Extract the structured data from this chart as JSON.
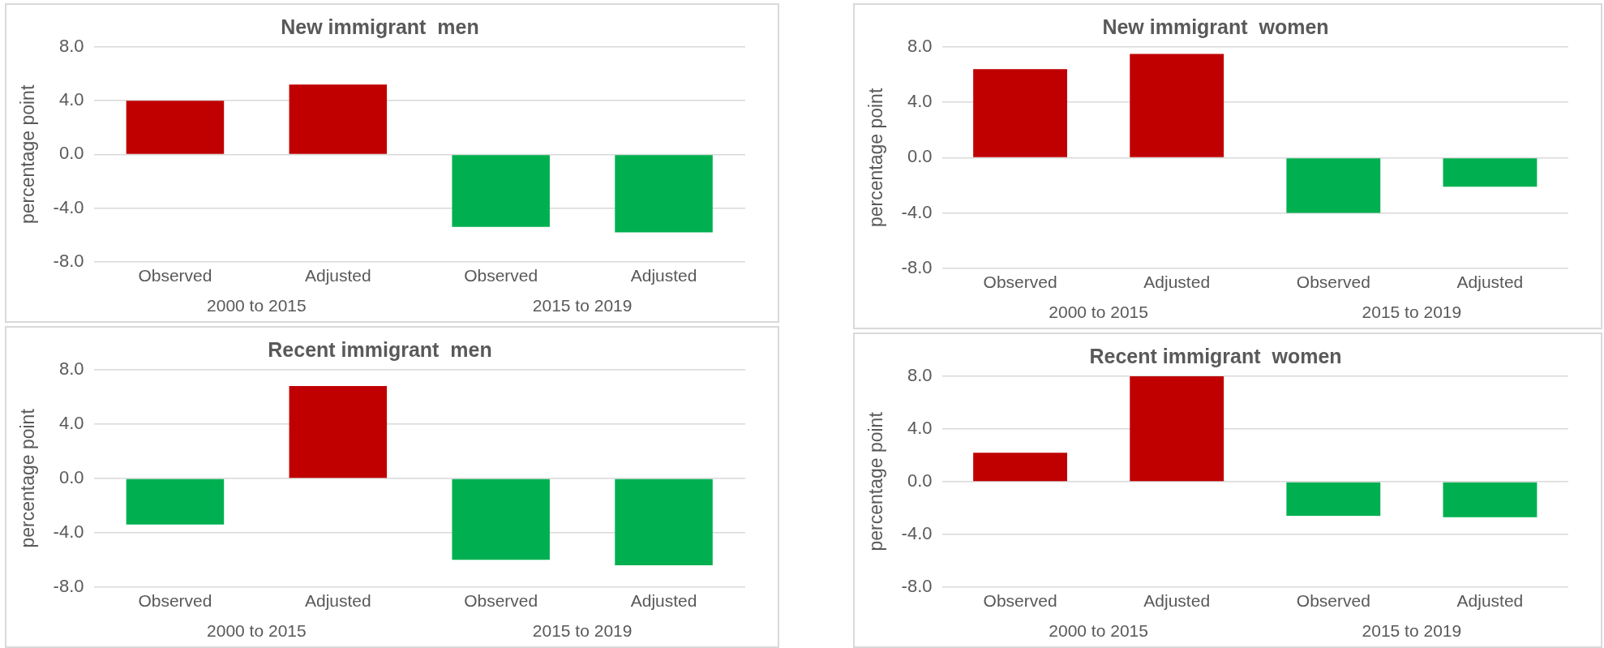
{
  "chart_data": [
    {
      "type": "bar",
      "title": "New immigrant  men",
      "ylabel": "percentage point",
      "categories": [
        "Observed",
        "Adjusted",
        "Observed",
        "Adjusted"
      ],
      "values": [
        4.0,
        5.2,
        -5.4,
        -5.8
      ],
      "colors": [
        "#c00000",
        "#c00000",
        "#00b050",
        "#00b050"
      ],
      "ylim": [
        -8,
        8
      ],
      "yticks": [
        {
          "value": -8,
          "label": "-8.0"
        },
        {
          "value": -4,
          "label": "-4.0"
        },
        {
          "value": 0,
          "label": "0.0"
        },
        {
          "value": 4,
          "label": "4.0"
        },
        {
          "value": 8,
          "label": "8.0"
        }
      ],
      "grid": "y",
      "annotations": [
        "2000 to 2015",
        "2015 to 2019"
      ]
    },
    {
      "type": "bar",
      "title": "New immigrant  women",
      "ylabel": "percentage point",
      "categories": [
        "Observed",
        "Adjusted",
        "Observed",
        "Adjusted"
      ],
      "values": [
        6.4,
        7.5,
        -4.0,
        -2.1
      ],
      "colors": [
        "#c00000",
        "#c00000",
        "#00b050",
        "#00b050"
      ],
      "ylim": [
        -8,
        8
      ],
      "yticks": [
        {
          "value": -8,
          "label": "-8.0"
        },
        {
          "value": -4,
          "label": "-4.0"
        },
        {
          "value": 0,
          "label": "0.0"
        },
        {
          "value": 4,
          "label": "4.0"
        },
        {
          "value": 8,
          "label": "8.0"
        }
      ],
      "grid": "y",
      "annotations": [
        "2000 to 2015",
        "2015 to 2019"
      ]
    },
    {
      "type": "bar",
      "title": "Recent immigrant  men",
      "ylabel": "percentage point",
      "categories": [
        "Observed",
        "Adjusted",
        "Observed",
        "Adjusted"
      ],
      "values": [
        -3.4,
        6.8,
        -6.0,
        -6.4
      ],
      "colors": [
        "#00b050",
        "#c00000",
        "#00b050",
        "#00b050"
      ],
      "ylim": [
        -8,
        8
      ],
      "yticks": [
        {
          "value": -8,
          "label": "-8.0"
        },
        {
          "value": -4,
          "label": "-4.0"
        },
        {
          "value": 0,
          "label": "0.0"
        },
        {
          "value": 4,
          "label": "4.0"
        },
        {
          "value": 8,
          "label": "8.0"
        }
      ],
      "grid": "y",
      "annotations": [
        "2000 to 2015",
        "2015 to 2019"
      ]
    },
    {
      "type": "bar",
      "title": "Recent immigrant  women",
      "ylabel": "percentage point",
      "categories": [
        "Observed",
        "Adjusted",
        "Observed",
        "Adjusted"
      ],
      "values": [
        2.2,
        8.0,
        -2.6,
        -2.7
      ],
      "colors": [
        "#c00000",
        "#c00000",
        "#00b050",
        "#00b050"
      ],
      "ylim": [
        -8,
        8
      ],
      "yticks": [
        {
          "value": -8,
          "label": "-8.0"
        },
        {
          "value": -4,
          "label": "-4.0"
        },
        {
          "value": 0,
          "label": "0.0"
        },
        {
          "value": 4,
          "label": "4.0"
        },
        {
          "value": 8,
          "label": "8.0"
        }
      ],
      "grid": "y",
      "annotations": [
        "2000 to 2015",
        "2015 to 2019"
      ]
    }
  ]
}
